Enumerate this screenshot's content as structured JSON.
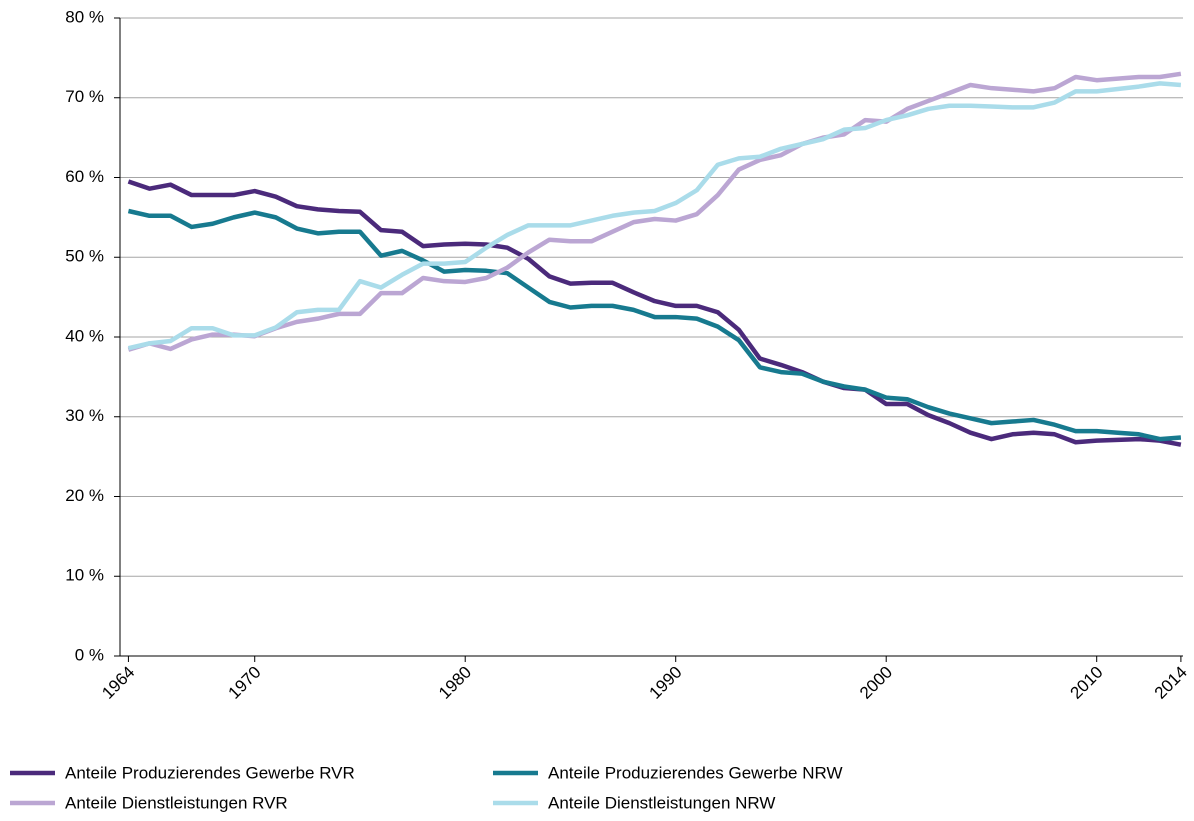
{
  "chart_data": {
    "type": "line",
    "x": [
      1964,
      1965,
      1966,
      1967,
      1968,
      1969,
      1970,
      1971,
      1972,
      1973,
      1974,
      1975,
      1976,
      1977,
      1978,
      1979,
      1980,
      1981,
      1982,
      1983,
      1984,
      1985,
      1986,
      1987,
      1988,
      1989,
      1990,
      1991,
      1992,
      1993,
      1994,
      1995,
      1996,
      1997,
      1998,
      1999,
      2000,
      2001,
      2002,
      2003,
      2004,
      2005,
      2006,
      2007,
      2008,
      2009,
      2010,
      2011,
      2012,
      2013,
      2014
    ],
    "series": [
      {
        "name": "Anteile Produzierendes Gewerbe RVR",
        "color": "#4b2a7b",
        "values": [
          59.5,
          58.6,
          59.1,
          57.8,
          57.8,
          57.8,
          58.3,
          57.6,
          56.4,
          56.0,
          55.8,
          55.7,
          53.4,
          53.2,
          51.4,
          51.6,
          51.7,
          51.6,
          51.2,
          49.8,
          47.6,
          46.7,
          46.8,
          46.8,
          45.6,
          44.5,
          43.9,
          43.9,
          43.1,
          40.9,
          37.3,
          36.5,
          35.6,
          34.4,
          33.6,
          33.4,
          31.6,
          31.6,
          30.2,
          29.2,
          28.0,
          27.2,
          27.8,
          28.0,
          27.8,
          26.8,
          27.0,
          27.1,
          27.2,
          27.0,
          26.5
        ]
      },
      {
        "name": "Anteile Produzierendes Gewerbe NRW",
        "color": "#177a8f",
        "values": [
          55.8,
          55.2,
          55.2,
          53.8,
          54.2,
          55.0,
          55.6,
          55.0,
          53.6,
          53.0,
          53.2,
          53.2,
          50.2,
          50.8,
          49.6,
          48.2,
          48.4,
          48.3,
          48.0,
          46.2,
          44.4,
          43.7,
          43.9,
          43.9,
          43.4,
          42.5,
          42.5,
          42.3,
          41.3,
          39.6,
          36.2,
          35.6,
          35.4,
          34.4,
          33.8,
          33.4,
          32.4,
          32.2,
          31.2,
          30.4,
          29.8,
          29.2,
          29.4,
          29.6,
          29.0,
          28.2,
          28.2,
          28.0,
          27.8,
          27.2,
          27.4
        ]
      },
      {
        "name": "Anteile Dienstleistungen RVR",
        "color": "#bba6d3",
        "values": [
          38.4,
          39.2,
          38.5,
          39.7,
          40.3,
          40.3,
          40.1,
          41.1,
          41.9,
          42.3,
          42.9,
          42.9,
          45.5,
          45.5,
          47.4,
          47.0,
          46.9,
          47.4,
          48.7,
          50.6,
          52.2,
          52.0,
          52.0,
          53.2,
          54.4,
          54.8,
          54.6,
          55.4,
          57.8,
          61.0,
          62.2,
          62.8,
          64.2,
          65.0,
          65.4,
          67.2,
          67.0,
          68.6,
          69.6,
          70.6,
          71.6,
          71.2,
          71.0,
          70.8,
          71.2,
          72.6,
          72.2,
          72.4,
          72.6,
          72.6,
          73.0
        ]
      },
      {
        "name": "Anteile Dienstleistungen NRW",
        "color": "#aadcea",
        "values": [
          38.6,
          39.2,
          39.5,
          41.1,
          41.1,
          40.2,
          40.2,
          41.2,
          43.1,
          43.4,
          43.4,
          47.0,
          46.2,
          47.8,
          49.2,
          49.2,
          49.4,
          51.2,
          52.8,
          54.0,
          54.0,
          54.0,
          54.6,
          55.2,
          55.6,
          55.8,
          56.8,
          58.4,
          61.6,
          62.4,
          62.6,
          63.6,
          64.2,
          64.8,
          66.0,
          66.2,
          67.2,
          67.8,
          68.6,
          69.0,
          69.0,
          68.9,
          68.8,
          68.8,
          69.4,
          70.8,
          70.8,
          71.1,
          71.4,
          71.8,
          71.6
        ]
      }
    ],
    "xlim": [
      1963.6,
      2014.1
    ],
    "xticks": [
      1964,
      1970,
      1980,
      1990,
      2000,
      2010,
      2014
    ],
    "ylim": [
      0,
      80
    ],
    "yticks": [
      {
        "value": 0,
        "label": "0 %"
      },
      {
        "value": 10,
        "label": "10 %"
      },
      {
        "value": 20,
        "label": "20 %"
      },
      {
        "value": 30,
        "label": "30 %"
      },
      {
        "value": 40,
        "label": "40 %"
      },
      {
        "value": 50,
        "label": "50 %"
      },
      {
        "value": 60,
        "label": "60 %"
      },
      {
        "value": 70,
        "label": "70 %"
      },
      {
        "value": 80,
        "label": "80 %"
      }
    ],
    "grid": true
  }
}
